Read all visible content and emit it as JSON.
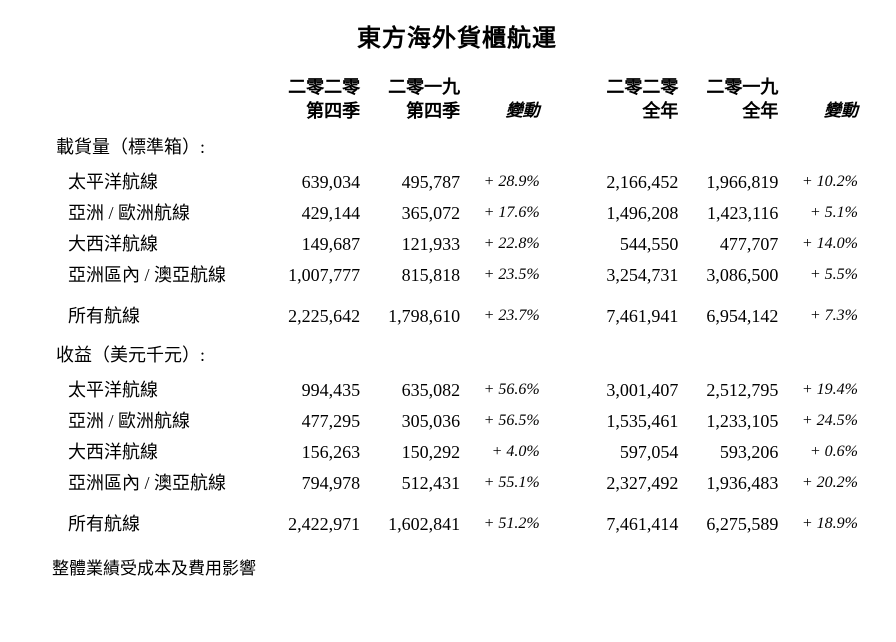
{
  "title": "東方海外貨櫃航運",
  "headers": {
    "q4_2020_line1": "二零二零",
    "q4_2020_line2": "第四季",
    "q4_2019_line1": "二零一九",
    "q4_2019_line2": "第四季",
    "change_q": "變動",
    "fy_2020_line1": "二零二零",
    "fy_2020_line2": "全年",
    "fy_2019_line1": "二零一九",
    "fy_2019_line2": "全年",
    "change_fy": "變動"
  },
  "section1": {
    "title": "載貨量（標準箱）:",
    "rows": [
      {
        "label": "太平洋航線",
        "q4_20": "639,034",
        "q4_19": "495,787",
        "chg_q": "+ 28.9%",
        "fy_20": "2,166,452",
        "fy_19": "1,966,819",
        "chg_fy": "+ 10.2%"
      },
      {
        "label": "亞洲 / 歐洲航線",
        "q4_20": "429,144",
        "q4_19": "365,072",
        "chg_q": "+ 17.6%",
        "fy_20": "1,496,208",
        "fy_19": "1,423,116",
        "chg_fy": "+ 5.1%"
      },
      {
        "label": "大西洋航線",
        "q4_20": "149,687",
        "q4_19": "121,933",
        "chg_q": "+ 22.8%",
        "fy_20": "544,550",
        "fy_19": "477,707",
        "chg_fy": "+ 14.0%"
      },
      {
        "label": "亞洲區內 / 澳亞航線",
        "q4_20": "1,007,777",
        "q4_19": "815,818",
        "chg_q": "+ 23.5%",
        "fy_20": "3,254,731",
        "fy_19": "3,086,500",
        "chg_fy": "+ 5.5%"
      }
    ],
    "total": {
      "label": "所有航線",
      "q4_20": "2,225,642",
      "q4_19": "1,798,610",
      "chg_q": "+ 23.7%",
      "fy_20": "7,461,941",
      "fy_19": "6,954,142",
      "chg_fy": "+ 7.3%"
    }
  },
  "section2": {
    "title": "收益（美元千元）:",
    "rows": [
      {
        "label": "太平洋航線",
        "q4_20": "994,435",
        "q4_19": "635,082",
        "chg_q": "+ 56.6%",
        "fy_20": "3,001,407",
        "fy_19": "2,512,795",
        "chg_fy": "+ 19.4%"
      },
      {
        "label": "亞洲 / 歐洲航線",
        "q4_20": "477,295",
        "q4_19": "305,036",
        "chg_q": "+ 56.5%",
        "fy_20": "1,535,461",
        "fy_19": "1,233,105",
        "chg_fy": "+ 24.5%"
      },
      {
        "label": "大西洋航線",
        "q4_20": "156,263",
        "q4_19": "150,292",
        "chg_q": "+ 4.0%",
        "fy_20": "597,054",
        "fy_19": "593,206",
        "chg_fy": "+ 0.6%"
      },
      {
        "label": "亞洲區內 / 澳亞航線",
        "q4_20": "794,978",
        "q4_19": "512,431",
        "chg_q": "+ 55.1%",
        "fy_20": "2,327,492",
        "fy_19": "1,936,483",
        "chg_fy": "+ 20.2%"
      }
    ],
    "total": {
      "label": "所有航線",
      "q4_20": "2,422,971",
      "q4_19": "1,602,841",
      "chg_q": "+ 51.2%",
      "fy_20": "7,461,414",
      "fy_19": "6,275,589",
      "chg_fy": "+ 18.9%"
    }
  },
  "footnote": "整體業績受成本及費用影響"
}
